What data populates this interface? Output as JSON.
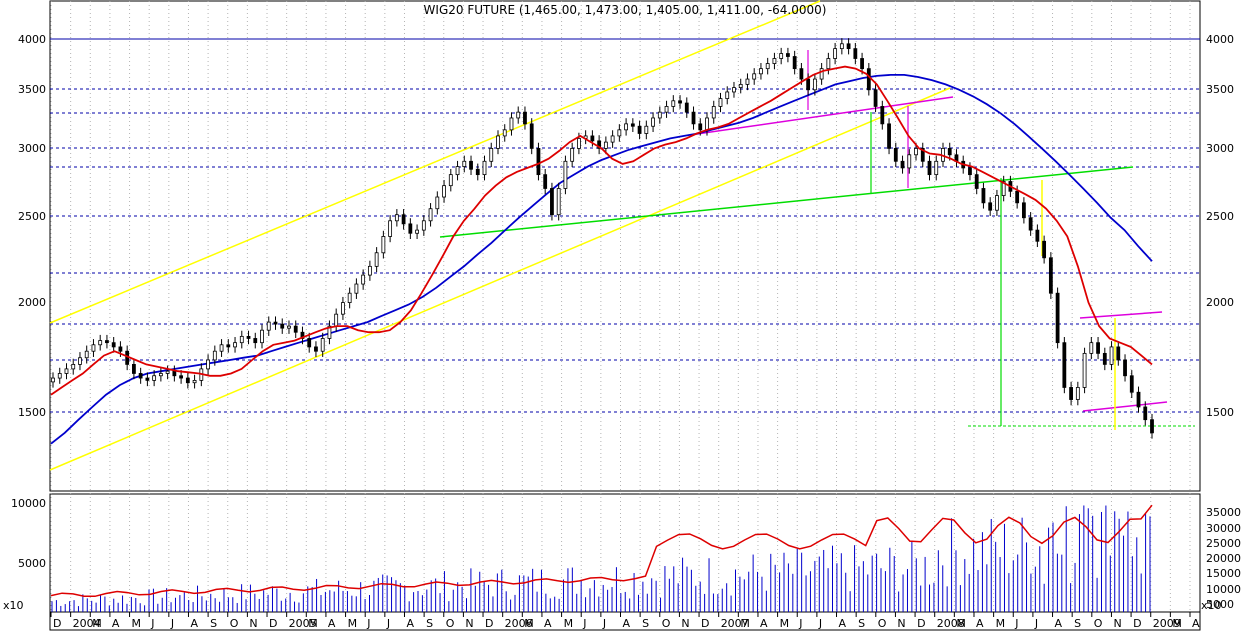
{
  "title": "WIG20 FUTURE (1,465.00, 1,473.00, 1,405.00, 1,411.00, -64.0000)",
  "chart_data": {
    "type": "candlestick",
    "price_ticks": [
      "4000",
      "3500",
      "3000",
      "2500",
      "2000",
      "1500"
    ],
    "volume_ticks_left": [
      "10000",
      "5000"
    ],
    "volume_ticks_right": [
      "35000",
      "30000",
      "25000",
      "20000",
      "15000",
      "10000",
      "5000"
    ],
    "volume_multiplier_left": "x10",
    "volume_multiplier_right": "x10",
    "x_tick_labels": [
      "D",
      "2004",
      "M",
      "A",
      "M",
      "J",
      "J",
      "A",
      "S",
      "O",
      "N",
      "D",
      "2005",
      "M",
      "A",
      "M",
      "J",
      "J",
      "A",
      "S",
      "O",
      "N",
      "D",
      "2006",
      "M",
      "A",
      "M",
      "J",
      "J",
      "A",
      "S",
      "O",
      "N",
      "D",
      "2007",
      "M",
      "A",
      "M",
      "J",
      "J",
      "A",
      "S",
      "O",
      "N",
      "D",
      "2008",
      "M",
      "A",
      "M",
      "J",
      "J",
      "A",
      "S",
      "O",
      "N",
      "D",
      "2009",
      "M",
      "A"
    ],
    "price_series_weekly": [
      1640,
      1660,
      1680,
      1700,
      1730,
      1760,
      1790,
      1810,
      1800,
      1780,
      1760,
      1700,
      1660,
      1640,
      1630,
      1650,
      1660,
      1670,
      1650,
      1640,
      1620,
      1630,
      1680,
      1720,
      1760,
      1790,
      1780,
      1800,
      1830,
      1820,
      1800,
      1860,
      1900,
      1890,
      1870,
      1880,
      1850,
      1820,
      1780,
      1760,
      1820,
      1880,
      1940,
      2000,
      2050,
      2100,
      2150,
      2200,
      2280,
      2380,
      2480,
      2520,
      2460,
      2400,
      2420,
      2480,
      2560,
      2640,
      2720,
      2800,
      2860,
      2900,
      2840,
      2800,
      2900,
      3000,
      3100,
      3150,
      3250,
      3300,
      3200,
      3000,
      2800,
      2700,
      2520,
      2700,
      2900,
      3000,
      3080,
      3100,
      3060,
      3000,
      3050,
      3100,
      3150,
      3200,
      3180,
      3120,
      3180,
      3250,
      3300,
      3350,
      3400,
      3380,
      3300,
      3200,
      3150,
      3250,
      3350,
      3420,
      3480,
      3520,
      3550,
      3600,
      3650,
      3700,
      3750,
      3800,
      3850,
      3820,
      3700,
      3600,
      3500,
      3600,
      3700,
      3800,
      3900,
      3950,
      3900,
      3800,
      3700,
      3500,
      3350,
      3200,
      3000,
      2900,
      2850,
      2950,
      3000,
      2900,
      2800,
      2900,
      3000,
      2950,
      2900,
      2850,
      2800,
      2700,
      2600,
      2550,
      2650,
      2750,
      2680,
      2600,
      2500,
      2420,
      2350,
      2250,
      2050,
      1800,
      1600,
      1550,
      1600,
      1750,
      1800,
      1750,
      1700,
      1780,
      1720,
      1650,
      1580,
      1520,
      1470,
      1420
    ],
    "ema_short_weekly": [
      1570,
      1600,
      1630,
      1660,
      1700,
      1740,
      1760,
      1740,
      1720,
      1700,
      1690,
      1680,
      1670,
      1665,
      1660,
      1650,
      1650,
      1660,
      1680,
      1720,
      1760,
      1790,
      1800,
      1810,
      1830,
      1850,
      1870,
      1880,
      1880,
      1860,
      1850,
      1850,
      1860,
      1900,
      1960,
      2050,
      2150,
      2260,
      2380,
      2480,
      2560,
      2650,
      2720,
      2780,
      2820,
      2850,
      2880,
      2920,
      2980,
      3050,
      3100,
      3050,
      3000,
      2920,
      2880,
      2900,
      2950,
      3000,
      3030,
      3050,
      3080,
      3120,
      3150,
      3170,
      3200,
      3250,
      3300,
      3350,
      3400,
      3460,
      3520,
      3580,
      3640,
      3680,
      3700,
      3720,
      3700,
      3650,
      3550,
      3400,
      3250,
      3100,
      3000,
      2960,
      2950,
      2920,
      2880,
      2860,
      2820,
      2780,
      2740,
      2700,
      2660,
      2620,
      2560,
      2480,
      2380,
      2200,
      2000,
      1880,
      1820,
      1800,
      1780,
      1740,
      1700
    ],
    "ema_long_weekly": [
      1380,
      1420,
      1470,
      1520,
      1570,
      1610,
      1640,
      1660,
      1670,
      1680,
      1690,
      1700,
      1710,
      1720,
      1730,
      1740,
      1760,
      1780,
      1800,
      1820,
      1840,
      1860,
      1880,
      1900,
      1930,
      1960,
      1990,
      2030,
      2080,
      2140,
      2200,
      2270,
      2340,
      2420,
      2500,
      2580,
      2660,
      2740,
      2800,
      2860,
      2910,
      2950,
      2990,
      3020,
      3050,
      3080,
      3100,
      3120,
      3150,
      3180,
      3210,
      3250,
      3300,
      3350,
      3400,
      3450,
      3500,
      3550,
      3580,
      3610,
      3630,
      3640,
      3640,
      3620,
      3590,
      3550,
      3500,
      3440,
      3370,
      3290,
      3200,
      3100,
      3000,
      2900,
      2800,
      2700,
      2600,
      2500,
      2420,
      2320,
      2230
    ]
  },
  "colors": {
    "price": "#000000",
    "ema_short": "#dd0000",
    "ema_long": "#0000cc",
    "channel": "#ffff00",
    "support": "#00dd00",
    "magenta": "#dd00dd",
    "volume_bars": "#0000cc",
    "open_interest": "#dd0000",
    "grid_h": "#0000aa",
    "grid_v": "#b4b4b4"
  }
}
